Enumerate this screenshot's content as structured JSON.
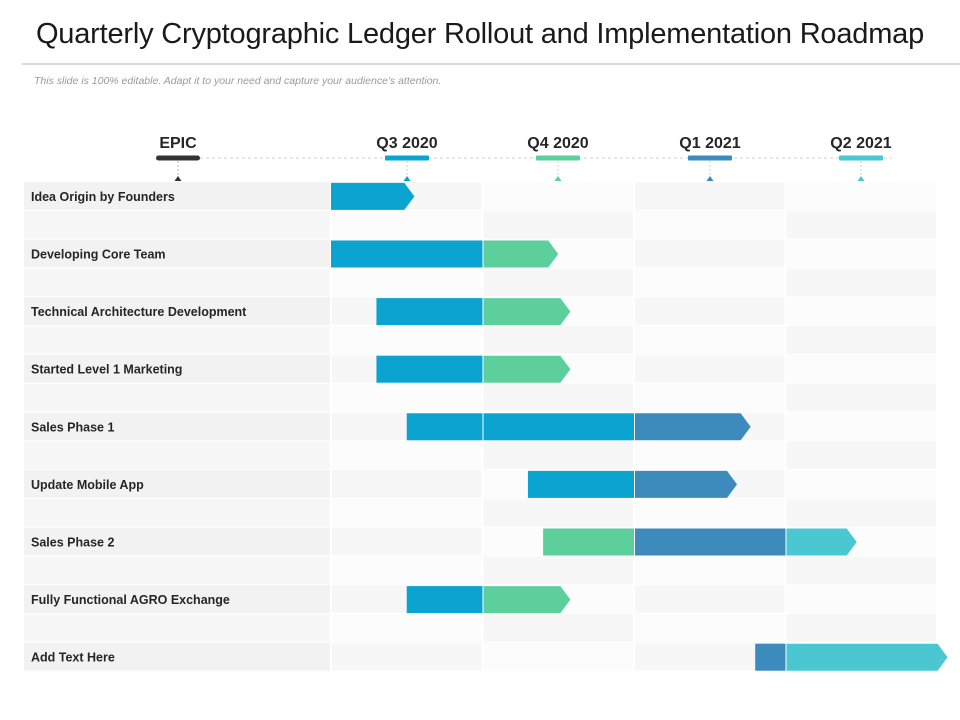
{
  "title": "Quarterly Cryptographic Ledger Rollout and Implementation Roadmap",
  "subtitle": "This slide is 100% editable. Adapt it to your need and capture your audience's attention.",
  "chart_data": {
    "type": "gantt",
    "title": "Quarterly Cryptographic Ledger Rollout and Implementation Roadmap",
    "epic_label": "EPIC",
    "quarters": [
      {
        "label": "Q3 2020",
        "color": "#0ba3cf"
      },
      {
        "label": "Q4 2020",
        "color": "#5ccf9c"
      },
      {
        "label": "Q1 2021",
        "color": "#3d8bbd"
      },
      {
        "label": "Q2 2021",
        "color": "#4bc7d2"
      }
    ],
    "tasks": [
      {
        "name": "Idea Origin by Founders",
        "start": 0.0,
        "end": 0.55,
        "segments": [
          {
            "from": 0.0,
            "to": 0.55,
            "quarter": 0
          }
        ]
      },
      {
        "name": "Developing Core Team",
        "start": 0.0,
        "end": 1.5,
        "segments": [
          {
            "from": 0.0,
            "to": 1.0,
            "quarter": 0
          },
          {
            "from": 1.0,
            "to": 1.5,
            "quarter": 1
          }
        ]
      },
      {
        "name": "Technical Architecture Development",
        "start": 0.3,
        "end": 1.58,
        "segments": [
          {
            "from": 0.3,
            "to": 1.0,
            "quarter": 0
          },
          {
            "from": 1.0,
            "to": 1.58,
            "quarter": 1
          }
        ]
      },
      {
        "name": "Started Level 1 Marketing",
        "start": 0.3,
        "end": 1.58,
        "segments": [
          {
            "from": 0.3,
            "to": 1.0,
            "quarter": 0
          },
          {
            "from": 1.0,
            "to": 1.58,
            "quarter": 1
          }
        ]
      },
      {
        "name": "Sales Phase 1",
        "start": 0.5,
        "end": 2.77,
        "segments": [
          {
            "from": 0.5,
            "to": 1.0,
            "quarter": 0
          },
          {
            "from": 1.0,
            "to": 2.0,
            "quarter": 0
          },
          {
            "from": 2.0,
            "to": 2.77,
            "quarter": 2
          }
        ]
      },
      {
        "name": "Update Mobile App",
        "start": 1.3,
        "end": 2.68,
        "segments": [
          {
            "from": 1.3,
            "to": 2.0,
            "quarter": 0
          },
          {
            "from": 2.0,
            "to": 2.68,
            "quarter": 2
          }
        ]
      },
      {
        "name": "Sales Phase 2",
        "start": 1.4,
        "end": 3.47,
        "segments": [
          {
            "from": 1.4,
            "to": 2.0,
            "quarter": 1
          },
          {
            "from": 2.0,
            "to": 3.0,
            "quarter": 2
          },
          {
            "from": 3.0,
            "to": 3.47,
            "quarter": 3
          }
        ]
      },
      {
        "name": "Fully Functional AGRO Exchange",
        "start": 0.5,
        "end": 1.58,
        "segments": [
          {
            "from": 0.5,
            "to": 1.0,
            "quarter": 0
          },
          {
            "from": 1.0,
            "to": 1.58,
            "quarter": 1
          }
        ]
      },
      {
        "name": "Add Text Here",
        "start": 2.8,
        "end": 4.07,
        "segments": [
          {
            "from": 2.8,
            "to": 3.0,
            "quarter": 2
          },
          {
            "from": 3.0,
            "to": 4.07,
            "quarter": 3
          }
        ]
      }
    ]
  }
}
